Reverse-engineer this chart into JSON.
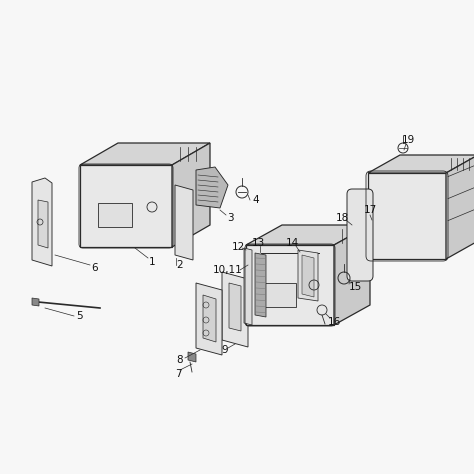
{
  "background_color": "#f7f7f7",
  "line_color": "#2a2a2a",
  "label_color": "#111111",
  "fig_width": 4.74,
  "fig_height": 4.74,
  "dpi": 100
}
